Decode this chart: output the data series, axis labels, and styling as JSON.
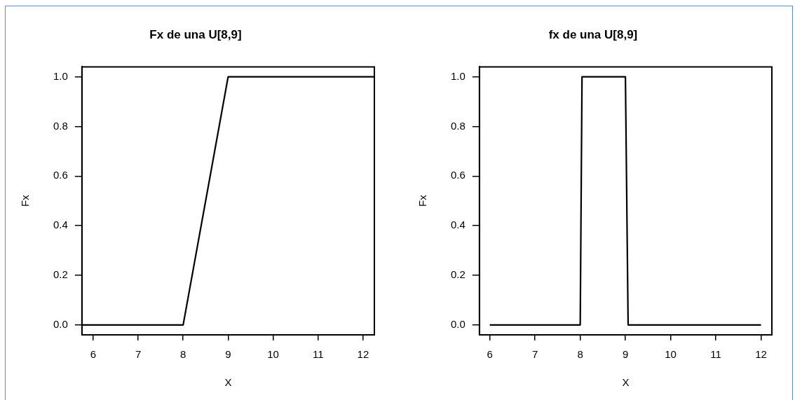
{
  "chart_data": [
    {
      "type": "line",
      "title": "Fx de una U[8,9]",
      "xlabel": "X",
      "ylabel": "Fx",
      "x": [
        5.75,
        8,
        9,
        12.25
      ],
      "values": [
        0,
        0,
        1,
        1
      ],
      "color": "#000000",
      "xlim": [
        5.75,
        12.25
      ],
      "ylim": [
        -0.04,
        1.04
      ],
      "xticks": [
        6,
        7,
        8,
        9,
        10,
        11,
        12
      ],
      "yticks": [
        {
          "value": 0,
          "label": "0.0"
        },
        {
          "value": 0.2,
          "label": "0.2"
        },
        {
          "value": 0.4,
          "label": "0.4"
        },
        {
          "value": 0.6,
          "label": "0.6"
        },
        {
          "value": 0.8,
          "label": "0.8"
        },
        {
          "value": 1,
          "label": "1.0"
        }
      ],
      "grid": false,
      "marker": "none",
      "line_style": "solid"
    },
    {
      "type": "line",
      "title": "fx de una U[8,9]",
      "xlabel": "X",
      "ylabel": "Fx",
      "x": [
        6,
        8,
        8.04,
        9,
        9.06,
        12
      ],
      "values": [
        0,
        0,
        1,
        1,
        0,
        0
      ],
      "color": "#000000",
      "xlim": [
        5.77,
        12.24
      ],
      "ylim": [
        -0.04,
        1.04
      ],
      "xticks": [
        6,
        7,
        8,
        9,
        10,
        11,
        12
      ],
      "yticks": [
        {
          "value": 0,
          "label": "0.0"
        },
        {
          "value": 0.2,
          "label": "0.2"
        },
        {
          "value": 0.4,
          "label": "0.4"
        },
        {
          "value": 0.6,
          "label": "0.6"
        },
        {
          "value": 0.8,
          "label": "0.8"
        },
        {
          "value": 1,
          "label": "1.0"
        }
      ],
      "grid": false,
      "marker": "none",
      "line_style": "solid"
    }
  ]
}
